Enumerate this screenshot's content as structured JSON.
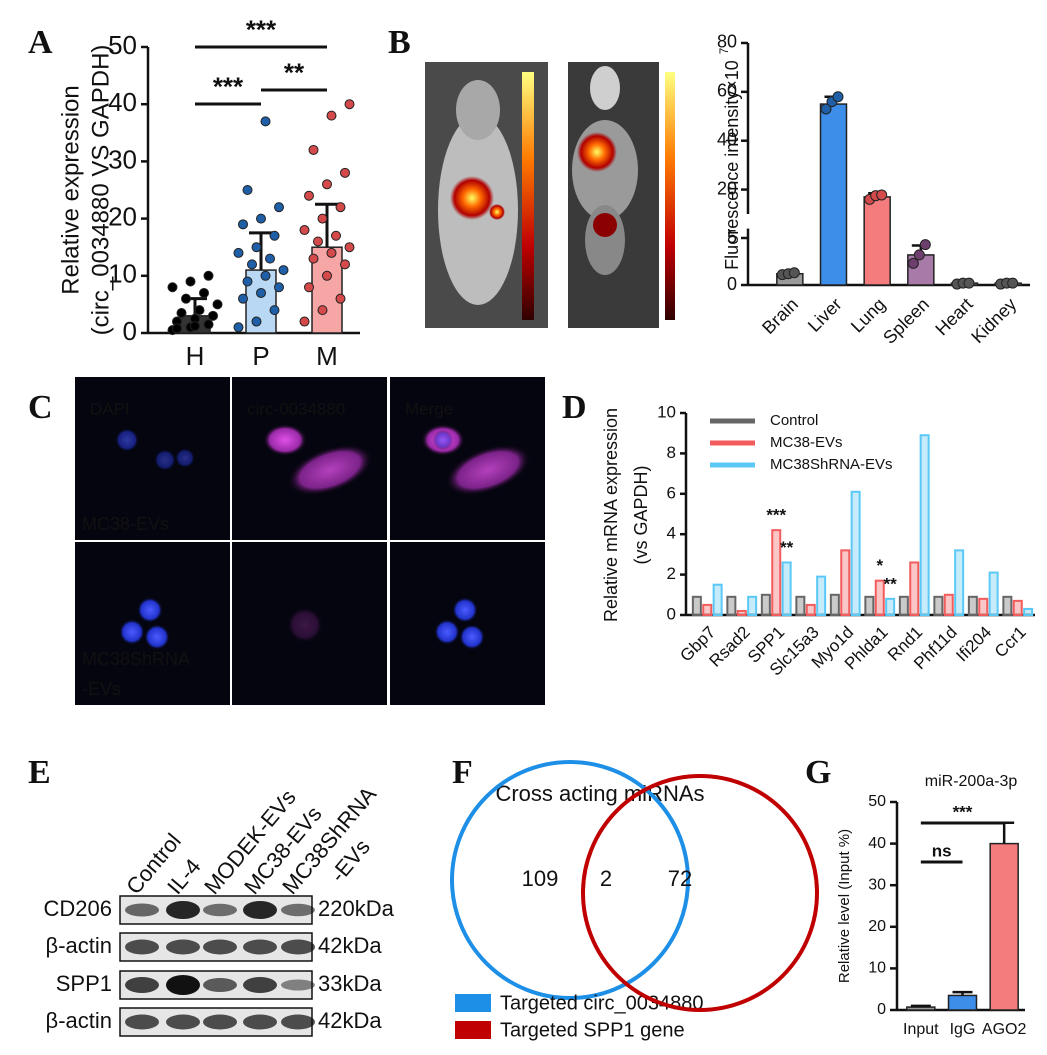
{
  "panel_letters": [
    "A",
    "B",
    "C",
    "D",
    "E",
    "F",
    "G"
  ],
  "chart_data": [
    {
      "type": "bar",
      "ylabel": [
        "Relative expression",
        "(circ_0034880 VS GAPDH)"
      ],
      "categories": [
        "H",
        "P",
        "M"
      ],
      "values": [
        3,
        11,
        15
      ],
      "errors": [
        3,
        6.5,
        7.5
      ],
      "colors": [
        "#333333",
        "#b9d8f4",
        "#f7a6a6"
      ],
      "point_colors": [
        "#000000",
        "#1f5fa8",
        "#d44a4a"
      ],
      "points": [
        [
          0.5,
          1,
          1.5,
          2,
          2.5,
          3,
          3.5,
          4,
          5,
          6,
          7,
          8,
          9,
          10,
          0.8,
          1.2
        ],
        [
          1,
          2,
          4,
          6,
          7,
          8,
          9,
          10,
          11,
          12,
          13,
          14,
          15,
          17,
          19,
          20,
          22,
          25,
          37
        ],
        [
          2,
          4,
          6,
          8,
          10,
          12,
          13,
          14,
          15,
          16,
          17,
          18,
          20,
          22,
          24,
          26,
          28,
          32,
          38,
          40
        ]
      ],
      "ylim": [
        0,
        50
      ],
      "yticks": [
        0,
        10,
        20,
        30,
        40,
        50
      ],
      "annotations": [
        {
          "text": "***",
          "from": 0,
          "to": 2
        },
        {
          "text": "***",
          "from": 0,
          "to": 1
        },
        {
          "text": "**",
          "from": 1,
          "to": 2
        }
      ]
    },
    {
      "type": "bar",
      "ylabel": "Fluorescence intensity×10",
      "ylabel_sup": "7",
      "categories": [
        "Brain",
        "Liver",
        "Lung",
        "Spleen",
        "Heart",
        "Kidney"
      ],
      "values": [
        1.2,
        55,
        17,
        3.2,
        0.2,
        0.2
      ],
      "errors": [
        0.3,
        3,
        1.5,
        1,
        0.2,
        0.2
      ],
      "colors": [
        "#9a9a9a",
        "#3d8ee8",
        "#f47c7c",
        "#a87aa8",
        "#9a9a9a",
        "#9a9a9a"
      ],
      "point_colors": [
        "#555555",
        "#1f5fa8",
        "#d44a4a",
        "#6d3f6d",
        "#555555",
        "#555555"
      ],
      "points": [
        [
          1.1,
          1.2,
          1.3
        ],
        [
          53,
          56,
          58
        ],
        [
          16,
          17.5,
          17.8
        ],
        [
          2.3,
          3.2,
          4.3
        ],
        [
          0.1,
          0.2,
          0.2
        ],
        [
          0.1,
          0.2,
          0.2
        ]
      ],
      "ylim": [
        0,
        80
      ],
      "yticks": [
        0,
        5,
        20,
        40,
        60,
        80
      ],
      "axis_break": [
        6,
        10
      ]
    },
    {
      "type": "grouped_bar",
      "ylabel": [
        "Relative mRNA expression",
        "(vs GAPDH)"
      ],
      "legend_position": "upper-left",
      "categories": [
        "Gbp7",
        "Rsad2",
        "SPP1",
        "Slc15a3",
        "Myo1d",
        "Phlda1",
        "Rnd1",
        "Phf11d",
        "Ifi204",
        "Ccr1"
      ],
      "series": [
        {
          "name": "Control",
          "color": "#666666",
          "values": [
            0.9,
            0.9,
            1,
            0.9,
            1,
            0.9,
            0.9,
            0.9,
            0.9,
            0.9
          ]
        },
        {
          "name": "MC38-EVs",
          "color": "#f25c5c",
          "values": [
            0.5,
            0.2,
            4.2,
            0.5,
            3.2,
            1.7,
            2.6,
            1,
            0.8,
            0.7
          ]
        },
        {
          "name": "MC38ShRNA-EVs",
          "color": "#5bc8f5",
          "values": [
            1.5,
            0.9,
            2.6,
            1.9,
            6.1,
            0.8,
            8.9,
            3.2,
            2.1,
            0.3
          ]
        }
      ],
      "ylim": [
        0,
        10
      ],
      "yticks": [
        0,
        2,
        4,
        6,
        8,
        10
      ],
      "annotations": [
        {
          "text": "***",
          "category": 2,
          "series": 1
        },
        {
          "text": "**",
          "category": 2,
          "series": 2
        },
        {
          "text": "*",
          "category": 5,
          "series": 1
        },
        {
          "text": "**",
          "category": 5,
          "series": 2
        }
      ]
    },
    {
      "type": "bar",
      "title": "miR-200a-3p",
      "ylabel": "Relative level (Input %)",
      "categories": [
        "Input",
        "IgG",
        "AGO2"
      ],
      "values": [
        0.7,
        3.5,
        40
      ],
      "errors": [
        0.3,
        0.8,
        5
      ],
      "colors": [
        "#9a9a9a",
        "#3d8ee8",
        "#f47c7c"
      ],
      "ylim": [
        0,
        50
      ],
      "yticks": [
        0,
        10,
        20,
        30,
        40,
        50
      ],
      "annotations": [
        {
          "text": "***",
          "from": 0,
          "to": 2
        },
        {
          "text": "ns",
          "from": 0,
          "to": 1
        }
      ]
    },
    {
      "type": "venn",
      "title": "Cross acting miRNAs",
      "sets": [
        {
          "name": "Targeted circ_0034880",
          "color": "#1e8fe6",
          "only": 109
        },
        {
          "name": "Targeted SPP1 gene",
          "color": "#c00000",
          "only": 72
        }
      ],
      "overlap": 2
    }
  ],
  "microscopy": {
    "channels": [
      "DAPI",
      "circ-0034880",
      "Merge"
    ],
    "groups": [
      [
        "MC38-EVs"
      ],
      [
        "MC38ShRNA",
        "-EVs"
      ]
    ]
  },
  "western_blot": {
    "lanes": [
      [
        "Control"
      ],
      [
        "IL-4"
      ],
      [
        "MODEK-EVs"
      ],
      [
        "MC38-EVs"
      ],
      [
        "MC38ShRNA",
        "-EVs"
      ]
    ],
    "rows": [
      {
        "protein": "CD206",
        "size": "220kDa"
      },
      {
        "protein": "β-actin",
        "size": "42kDa"
      },
      {
        "protein": "SPP1",
        "size": "33kDa"
      },
      {
        "protein": "β-actin",
        "size": "42kDa"
      }
    ]
  }
}
